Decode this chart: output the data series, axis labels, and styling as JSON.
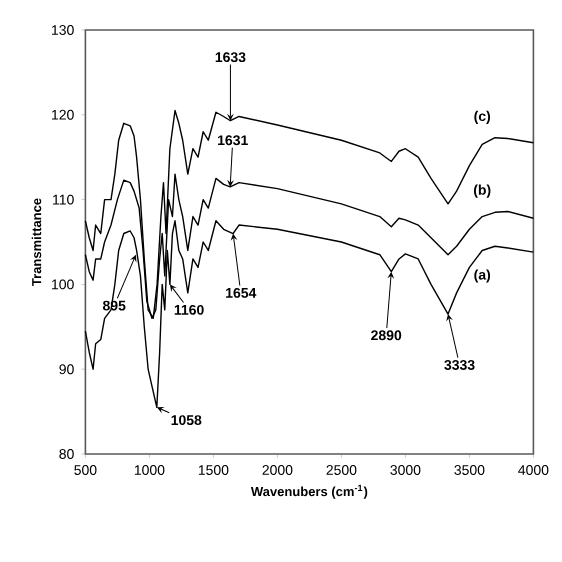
{
  "chart_data": {
    "type": "line",
    "xlabel": "Wavenubers (cm$^{-1}$)",
    "ylabel": "Transmittance",
    "xlim": [
      500,
      4000
    ],
    "ylim": [
      80,
      130
    ],
    "xticks": [
      500,
      1000,
      1500,
      2000,
      2500,
      3000,
      3500,
      4000
    ],
    "yticks": [
      80,
      90,
      100,
      110,
      120,
      130
    ],
    "grid": false,
    "marker": "none",
    "line_style": "solid",
    "series": [
      {
        "name": "(a)",
        "color": "#000000",
        "x": [
          500,
          530,
          560,
          580,
          620,
          650,
          700,
          730,
          760,
          800,
          850,
          880,
          900,
          930,
          960,
          990,
          1020,
          1058,
          1080,
          1100,
          1120,
          1140,
          1160,
          1180,
          1200,
          1230,
          1260,
          1300,
          1340,
          1380,
          1420,
          1460,
          1520,
          1580,
          1654,
          1700,
          2000,
          2500,
          2800,
          2890,
          2950,
          3000,
          3100,
          3200,
          3333,
          3400,
          3500,
          3600,
          3700,
          3800,
          4000
        ],
        "values": [
          94.5,
          92,
          90,
          93,
          93.5,
          96,
          97,
          100,
          104,
          106,
          106.3,
          105.5,
          104,
          101,
          95,
          90,
          88,
          85.5,
          92,
          100,
          97,
          104,
          100,
          106,
          107.5,
          104,
          103,
          99,
          103,
          102,
          105,
          104,
          107.5,
          106.5,
          106,
          107,
          106.5,
          105,
          103.5,
          101.5,
          103,
          103.6,
          103,
          100,
          96.5,
          99,
          102,
          104,
          104.5,
          104.3,
          103.8
        ]
      },
      {
        "name": "(b)",
        "color": "#000000",
        "x": [
          500,
          530,
          560,
          580,
          620,
          650,
          700,
          750,
          800,
          850,
          880,
          920,
          950,
          980,
          1020,
          1050,
          1080,
          1100,
          1120,
          1150,
          1180,
          1200,
          1230,
          1260,
          1300,
          1340,
          1380,
          1420,
          1460,
          1520,
          1580,
          1631,
          1700,
          2000,
          2500,
          2800,
          2890,
          2950,
          3000,
          3100,
          3200,
          3333,
          3400,
          3500,
          3600,
          3700,
          3800,
          4000
        ],
        "values": [
          103.5,
          101.5,
          100.5,
          103,
          103,
          105,
          107,
          110,
          112.3,
          112,
          111,
          109,
          104,
          98,
          96,
          97,
          103,
          106,
          101,
          110,
          108,
          113,
          110,
          108,
          104,
          108,
          107,
          110,
          109,
          112.5,
          111.8,
          111.5,
          112,
          111.3,
          109.5,
          108,
          106.8,
          107.8,
          107.6,
          107,
          105.5,
          103.5,
          104.5,
          106.5,
          108,
          108.5,
          108.6,
          107.8
        ]
      },
      {
        "name": "(c)",
        "color": "#000000",
        "x": [
          500,
          530,
          560,
          580,
          620,
          650,
          700,
          730,
          760,
          800,
          850,
          880,
          900,
          930,
          960,
          990,
          1030,
          1060,
          1090,
          1110,
          1130,
          1160,
          1200,
          1230,
          1260,
          1300,
          1340,
          1380,
          1420,
          1460,
          1520,
          1580,
          1633,
          1700,
          2000,
          2500,
          2800,
          2890,
          2950,
          3000,
          3100,
          3200,
          3333,
          3400,
          3500,
          3600,
          3700,
          3800,
          4000
        ],
        "values": [
          107.5,
          105.5,
          104,
          107,
          106,
          110,
          110,
          113,
          117,
          119,
          118.7,
          117.5,
          115,
          110,
          103,
          97,
          96,
          100,
          108,
          112,
          106,
          116,
          120.5,
          119,
          117,
          113,
          116,
          115,
          118,
          117,
          120.3,
          119.8,
          119.3,
          119.8,
          118.8,
          117,
          115.5,
          114.5,
          115.7,
          116,
          115,
          112.5,
          109.5,
          111,
          114,
          116.5,
          117.3,
          117.2,
          116.7
        ]
      }
    ],
    "annotations": [
      {
        "text": "1633",
        "x": 1633,
        "y": 119.3
      },
      {
        "text": "1631",
        "x": 1631,
        "y": 111.5
      },
      {
        "text": "1654",
        "x": 1654,
        "y": 106
      },
      {
        "text": "895",
        "x": 895,
        "y": 103.5
      },
      {
        "text": "1160",
        "x": 1160,
        "y": 100
      },
      {
        "text": "1058",
        "x": 1058,
        "y": 85.5
      },
      {
        "text": "2890",
        "x": 2890,
        "y": 101.5
      },
      {
        "text": "3333",
        "x": 3333,
        "y": 96.5
      }
    ]
  }
}
